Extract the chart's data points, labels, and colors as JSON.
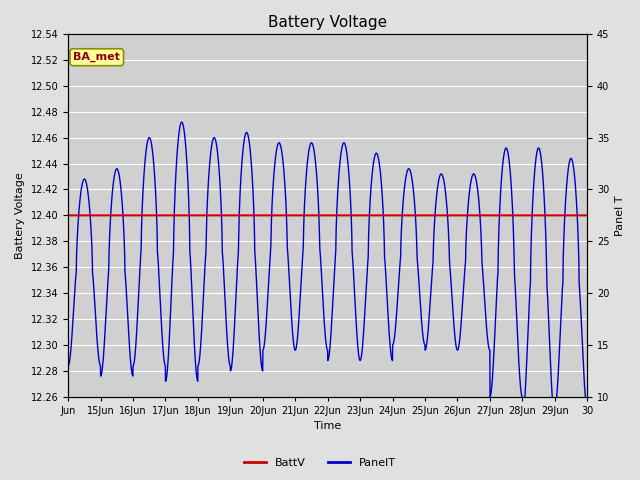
{
  "title": "Battery Voltage",
  "xlabel": "Time",
  "ylabel_left": "Battery Voltage",
  "ylabel_right": "Panel T",
  "background_color": "#e0e0e0",
  "plot_bg_color": "#d0d0d0",
  "ylim_left": [
    12.26,
    12.54
  ],
  "ylim_right": [
    10,
    45
  ],
  "yticks_left": [
    12.26,
    12.28,
    12.3,
    12.32,
    12.34,
    12.36,
    12.38,
    12.4,
    12.42,
    12.44,
    12.46,
    12.48,
    12.5,
    12.52,
    12.54
  ],
  "yticks_right": [
    10,
    15,
    20,
    25,
    30,
    35,
    40,
    45
  ],
  "xtick_labels": [
    "Jun",
    "15Jun",
    "16Jun",
    "17Jun",
    "18Jun",
    "19Jun",
    "20Jun",
    "21Jun",
    "22Jun",
    "23Jun",
    "24Jun",
    "25Jun",
    "26Jun",
    "27Jun",
    "28Jun",
    "29Jun",
    "30"
  ],
  "battv_value": 12.4,
  "battv_color": "#cc0000",
  "panelt_color": "#0000cc",
  "legend_battv": "BattV",
  "legend_panelt": "PanelT",
  "annotation_text": "BA_met",
  "annotation_bg": "#ffff99",
  "annotation_border": "#8b8b00"
}
